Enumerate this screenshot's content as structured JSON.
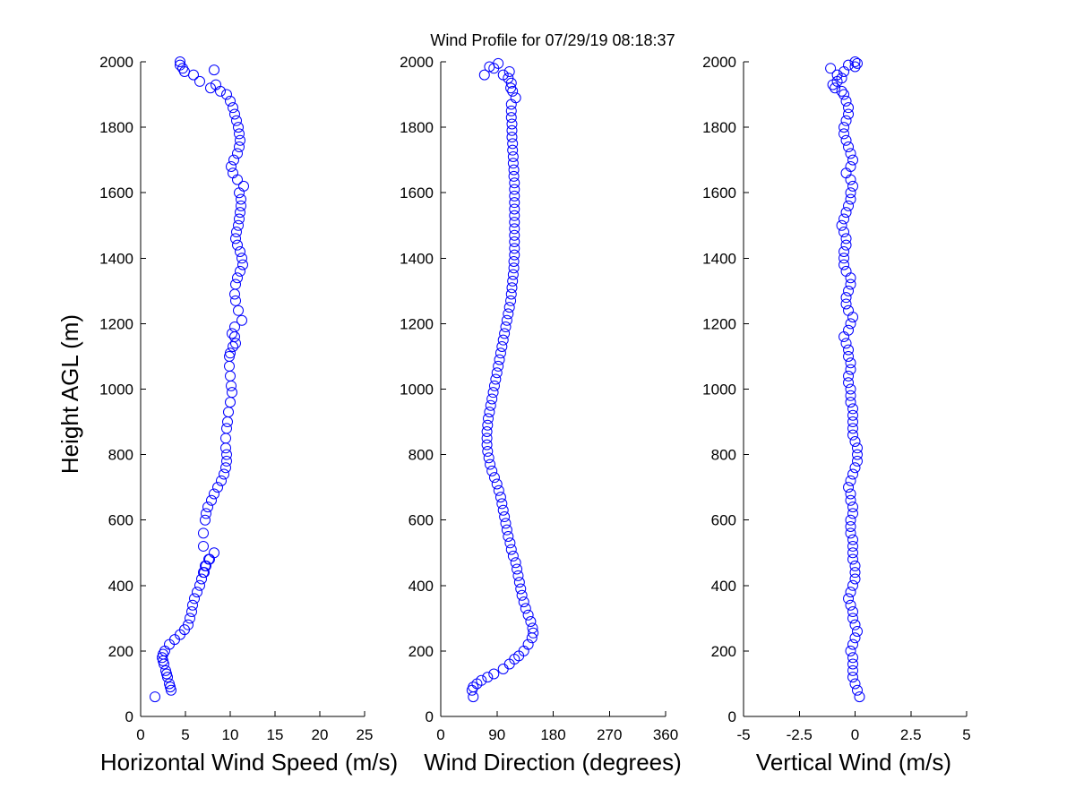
{
  "title": "Wind Profile for  07/29/19 08:18:37",
  "ylabel": "Height AGL (m)",
  "colors": {
    "marker": "#0000ff",
    "axis": "#000000",
    "background": "#ffffff"
  },
  "chart_data": [
    {
      "type": "scatter",
      "xlabel": "Horizontal Wind Speed (m/s)",
      "ylabel": "Height AGL (m)",
      "xlim": [
        0,
        25
      ],
      "ylim": [
        0,
        2000
      ],
      "xticks": [
        0,
        5,
        10,
        15,
        20,
        25
      ],
      "xtick_labels": [
        "0",
        "5",
        "10",
        "15",
        "20",
        "25"
      ],
      "yticks": [
        0,
        200,
        400,
        600,
        800,
        1000,
        1200,
        1400,
        1600,
        1800,
        2000
      ],
      "ytick_labels": [
        "0",
        "200",
        "400",
        "600",
        "800",
        "1000",
        "1200",
        "1400",
        "1600",
        "1800",
        "2000"
      ],
      "grid": false,
      "marker": "open-circle",
      "x": [
        1.6,
        3.4,
        3.3,
        3.2,
        3.0,
        2.9,
        2.8,
        2.6,
        2.5,
        2.4,
        2.5,
        2.7,
        3.2,
        3.8,
        4.4,
        4.9,
        5.3,
        5.5,
        5.7,
        5.8,
        6.0,
        6.3,
        6.6,
        6.8,
        7.0,
        7.2,
        7.7,
        8.2,
        7.6,
        7.3,
        7.1,
        7.0,
        7.0,
        7.2,
        7.3,
        7.5,
        7.9,
        8.2,
        8.6,
        9.0,
        9.3,
        9.5,
        9.6,
        9.6,
        9.5,
        9.5,
        9.6,
        9.7,
        9.8,
        10.0,
        10.2,
        10.1,
        10.0,
        9.9,
        9.9,
        10.0,
        10.3,
        10.6,
        10.5,
        10.2,
        10.5,
        11.3,
        10.9,
        10.6,
        10.5,
        10.6,
        10.8,
        11.1,
        11.4,
        11.3,
        11.1,
        10.8,
        10.6,
        10.7,
        10.9,
        11.0,
        11.1,
        11.2,
        11.2,
        11.0,
        11.5,
        10.8,
        10.3,
        10.1,
        10.4,
        10.8,
        11.0,
        11.1,
        11.0,
        10.9,
        10.7,
        10.5,
        10.3,
        10.0,
        9.6,
        8.9,
        7.8,
        8.4,
        6.6,
        5.9,
        4.7,
        4.4,
        4.4,
        4.9,
        8.2
      ],
      "y": [
        60,
        80,
        90,
        100,
        120,
        130,
        140,
        160,
        170,
        180,
        190,
        200,
        220,
        235,
        250,
        265,
        280,
        300,
        320,
        340,
        360,
        380,
        400,
        420,
        440,
        460,
        480,
        500,
        480,
        460,
        440,
        520,
        560,
        600,
        620,
        640,
        660,
        680,
        700,
        720,
        740,
        760,
        780,
        800,
        820,
        850,
        880,
        900,
        930,
        960,
        990,
        1010,
        1040,
        1070,
        1100,
        1110,
        1130,
        1140,
        1160,
        1170,
        1190,
        1210,
        1240,
        1270,
        1290,
        1320,
        1340,
        1360,
        1380,
        1400,
        1420,
        1440,
        1460,
        1480,
        1500,
        1520,
        1540,
        1560,
        1580,
        1600,
        1620,
        1640,
        1660,
        1680,
        1700,
        1720,
        1740,
        1760,
        1780,
        1800,
        1820,
        1840,
        1860,
        1880,
        1900,
        1910,
        1920,
        1930,
        1940,
        1960,
        1980,
        1990,
        2000,
        1970,
        1975
      ]
    },
    {
      "type": "scatter",
      "xlabel": "Wind Direction (degrees)",
      "ylabel": "",
      "xlim": [
        0,
        360
      ],
      "ylim": [
        0,
        2000
      ],
      "xticks": [
        0,
        90,
        180,
        270,
        360
      ],
      "xtick_labels": [
        "0",
        "90",
        "180",
        "270",
        "360"
      ],
      "yticks": [
        0,
        200,
        400,
        600,
        800,
        1000,
        1200,
        1400,
        1600,
        1800,
        2000
      ],
      "ytick_labels": [
        "0",
        "200",
        "400",
        "600",
        "800",
        "1000",
        "1200",
        "1400",
        "1600",
        "1800",
        "2000"
      ],
      "grid": false,
      "marker": "open-circle",
      "x": [
        52,
        50,
        52,
        58,
        65,
        75,
        85,
        100,
        110,
        118,
        125,
        133,
        140,
        146,
        148,
        147,
        144,
        140,
        136,
        133,
        130,
        128,
        126,
        124,
        122,
        120,
        116,
        113,
        111,
        108,
        106,
        104,
        102,
        100,
        98,
        96,
        93,
        90,
        86,
        82,
        79,
        77,
        75,
        74,
        74,
        74,
        75,
        76,
        78,
        80,
        82,
        84,
        86,
        88,
        90,
        92,
        94,
        96,
        98,
        100,
        102,
        104,
        106,
        108,
        110,
        112,
        113,
        114,
        115,
        116,
        117,
        117,
        118,
        118,
        118,
        118,
        118,
        118,
        118,
        118,
        118,
        118,
        118,
        118,
        117,
        117,
        116,
        116,
        115,
        115,
        114,
        114,
        114,
        113,
        113,
        113,
        120,
        115,
        112,
        113,
        108,
        100,
        85,
        78,
        92,
        70,
        110
      ],
      "y": [
        60,
        80,
        90,
        100,
        110,
        120,
        130,
        145,
        160,
        175,
        185,
        200,
        220,
        240,
        255,
        270,
        290,
        310,
        330,
        350,
        370,
        390,
        410,
        430,
        450,
        470,
        490,
        510,
        530,
        550,
        570,
        590,
        610,
        630,
        650,
        670,
        690,
        710,
        730,
        750,
        770,
        790,
        810,
        830,
        850,
        870,
        890,
        910,
        930,
        950,
        970,
        990,
        1010,
        1030,
        1050,
        1070,
        1090,
        1110,
        1130,
        1150,
        1170,
        1190,
        1210,
        1230,
        1250,
        1270,
        1290,
        1310,
        1330,
        1350,
        1370,
        1390,
        1410,
        1430,
        1450,
        1470,
        1490,
        1510,
        1530,
        1550,
        1570,
        1590,
        1610,
        1630,
        1650,
        1670,
        1690,
        1710,
        1730,
        1750,
        1770,
        1790,
        1810,
        1830,
        1850,
        1870,
        1890,
        1910,
        1920,
        1935,
        1950,
        1960,
        1980,
        1985,
        1995,
        1960,
        1970
      ]
    },
    {
      "type": "scatter",
      "xlabel": "Vertical Wind (m/s)",
      "ylabel": "",
      "xlim": [
        -5,
        5
      ],
      "ylim": [
        0,
        2000
      ],
      "xticks": [
        -5,
        -2.5,
        0,
        2.5,
        5
      ],
      "xtick_labels": [
        "-5",
        "-2.5",
        "0",
        "2.5",
        "5"
      ],
      "yticks": [
        0,
        200,
        400,
        600,
        800,
        1000,
        1200,
        1400,
        1600,
        1800,
        2000
      ],
      "ytick_labels": [
        "0",
        "200",
        "400",
        "600",
        "800",
        "1000",
        "1200",
        "1400",
        "1600",
        "1800",
        "2000"
      ],
      "grid": false,
      "marker": "open-circle",
      "x": [
        0.2,
        0.1,
        0.0,
        -0.1,
        -0.1,
        -0.1,
        -0.1,
        -0.2,
        -0.1,
        0.0,
        0.1,
        0.0,
        -0.1,
        -0.1,
        -0.2,
        -0.3,
        -0.2,
        -0.1,
        0.0,
        0.0,
        0.0,
        -0.1,
        -0.1,
        -0.1,
        -0.1,
        -0.2,
        -0.2,
        -0.2,
        -0.1,
        -0.1,
        -0.2,
        -0.2,
        -0.3,
        -0.2,
        -0.1,
        0.0,
        0.1,
        0.1,
        0.1,
        0.0,
        -0.1,
        -0.1,
        -0.1,
        -0.1,
        -0.1,
        -0.2,
        -0.2,
        -0.2,
        -0.3,
        -0.3,
        -0.2,
        -0.2,
        -0.3,
        -0.3,
        -0.4,
        -0.5,
        -0.3,
        -0.2,
        -0.1,
        -0.3,
        -0.4,
        -0.4,
        -0.3,
        -0.2,
        -0.2,
        -0.4,
        -0.5,
        -0.5,
        -0.5,
        -0.4,
        -0.4,
        -0.5,
        -0.6,
        -0.5,
        -0.4,
        -0.3,
        -0.2,
        -0.2,
        -0.1,
        -0.2,
        -0.4,
        -0.2,
        -0.1,
        -0.2,
        -0.3,
        -0.4,
        -0.5,
        -0.5,
        -0.4,
        -0.3,
        -0.3,
        -0.4,
        -0.5,
        -0.6,
        -0.9,
        -1.0,
        -0.8,
        -0.6,
        -0.8,
        -1.1,
        -0.3,
        0.0,
        0.1,
        0.0,
        -0.5
      ],
      "y": [
        60,
        80,
        100,
        120,
        140,
        160,
        180,
        200,
        220,
        240,
        260,
        280,
        300,
        320,
        340,
        360,
        380,
        400,
        420,
        440,
        460,
        480,
        500,
        520,
        540,
        560,
        580,
        600,
        620,
        640,
        660,
        680,
        700,
        720,
        740,
        760,
        780,
        800,
        820,
        840,
        860,
        880,
        900,
        920,
        940,
        960,
        980,
        1000,
        1020,
        1040,
        1060,
        1080,
        1100,
        1120,
        1140,
        1160,
        1180,
        1200,
        1220,
        1240,
        1260,
        1280,
        1300,
        1320,
        1340,
        1360,
        1380,
        1400,
        1420,
        1440,
        1460,
        1480,
        1500,
        1520,
        1540,
        1560,
        1580,
        1600,
        1620,
        1640,
        1660,
        1680,
        1700,
        1720,
        1740,
        1760,
        1780,
        1800,
        1820,
        1840,
        1860,
        1880,
        1900,
        1910,
        1920,
        1930,
        1940,
        1950,
        1960,
        1980,
        1990,
        2000,
        1995,
        1985,
        1970
      ]
    }
  ]
}
